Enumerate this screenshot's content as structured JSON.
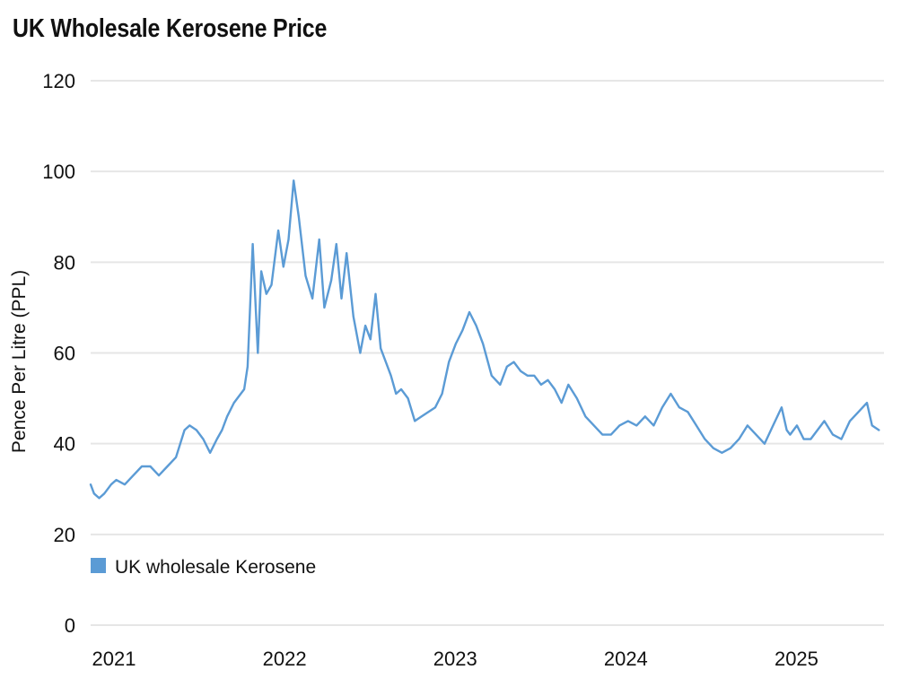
{
  "chart_data": {
    "type": "line",
    "title": "UK Wholesale Kerosene Price",
    "xlabel": "",
    "ylabel": "Pence Per Litre (PPL)",
    "ylim": [
      0,
      120
    ],
    "yticks": [
      0,
      20,
      40,
      60,
      80,
      100,
      120
    ],
    "xlim": [
      2021.0,
      2025.65
    ],
    "xticks": [
      2021,
      2022,
      2023,
      2024,
      2025
    ],
    "grid": true,
    "legend": {
      "position": "bottom-left",
      "entries": [
        "UK wholesale Kerosene"
      ]
    },
    "series": [
      {
        "name": "UK wholesale Kerosene",
        "color": "#5b9bd5",
        "x": [
          2021.0,
          2021.02,
          2021.05,
          2021.08,
          2021.12,
          2021.15,
          2021.2,
          2021.25,
          2021.3,
          2021.35,
          2021.4,
          2021.45,
          2021.5,
          2021.55,
          2021.58,
          2021.62,
          2021.66,
          2021.7,
          2021.74,
          2021.77,
          2021.8,
          2021.84,
          2021.88,
          2021.9,
          2021.92,
          2021.95,
          2021.98,
          2022.0,
          2022.03,
          2022.06,
          2022.1,
          2022.13,
          2022.16,
          2022.19,
          2022.22,
          2022.26,
          2022.3,
          2022.34,
          2022.37,
          2022.41,
          2022.44,
          2022.47,
          2022.5,
          2022.54,
          2022.58,
          2022.61,
          2022.64,
          2022.67,
          2022.7,
          2022.73,
          2022.76,
          2022.79,
          2022.82,
          2022.86,
          2022.9,
          2022.94,
          2022.98,
          2023.02,
          2023.06,
          2023.1,
          2023.14,
          2023.18,
          2023.22,
          2023.26,
          2023.3,
          2023.35,
          2023.4,
          2023.44,
          2023.48,
          2023.52,
          2023.56,
          2023.6,
          2023.64,
          2023.68,
          2023.72,
          2023.76,
          2023.8,
          2023.85,
          2023.9,
          2023.95,
          2024.0,
          2024.05,
          2024.1,
          2024.15,
          2024.2,
          2024.25,
          2024.3,
          2024.35,
          2024.4,
          2024.45,
          2024.5,
          2024.55,
          2024.6,
          2024.65,
          2024.7,
          2024.75,
          2024.8,
          2024.85,
          2024.9,
          2024.95,
          2025.0,
          2025.05,
          2025.08,
          2025.1,
          2025.14,
          2025.18,
          2025.22,
          2025.26,
          2025.3,
          2025.35,
          2025.4,
          2025.45,
          2025.5,
          2025.55,
          2025.58,
          2025.62
        ],
        "y": [
          31,
          29,
          28,
          29,
          31,
          32,
          31,
          33,
          35,
          35,
          33,
          35,
          37,
          43,
          44,
          43,
          41,
          38,
          41,
          43,
          46,
          49,
          51,
          52,
          57,
          84,
          60,
          78,
          73,
          75,
          87,
          79,
          85,
          98,
          90,
          77,
          72,
          85,
          70,
          76,
          84,
          72,
          82,
          68,
          60,
          66,
          63,
          73,
          61,
          58,
          55,
          51,
          52,
          50,
          45,
          46,
          47,
          48,
          51,
          58,
          62,
          65,
          69,
          66,
          62,
          55,
          53,
          57,
          58,
          56,
          55,
          55,
          53,
          54,
          52,
          49,
          53,
          50,
          46,
          44,
          42,
          42,
          44,
          45,
          44,
          46,
          44,
          48,
          51,
          48,
          47,
          44,
          41,
          39,
          38,
          39,
          41,
          44,
          42,
          40,
          44,
          48,
          43,
          42,
          44,
          41,
          41,
          43,
          45,
          42,
          41,
          45,
          47,
          49,
          44,
          43
        ]
      }
    ]
  }
}
